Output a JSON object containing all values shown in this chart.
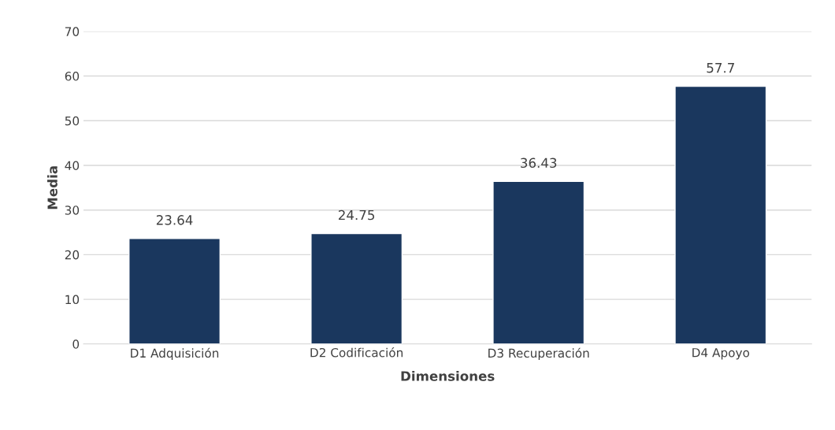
{
  "chart_data": {
    "type": "bar",
    "xlabel": "Dimensiones",
    "ylabel": "Media",
    "categories": [
      "D1 Adquisición",
      "D2 Codificación",
      "D3 Recuperación",
      "D4 Apoyo"
    ],
    "values": [
      23.64,
      24.75,
      36.43,
      57.7
    ],
    "color": "#1a375e",
    "ylim": [
      0,
      70
    ],
    "yticks": [
      0,
      10,
      20,
      30,
      40,
      50,
      60,
      70
    ],
    "grid": "y",
    "data_labels": true
  }
}
